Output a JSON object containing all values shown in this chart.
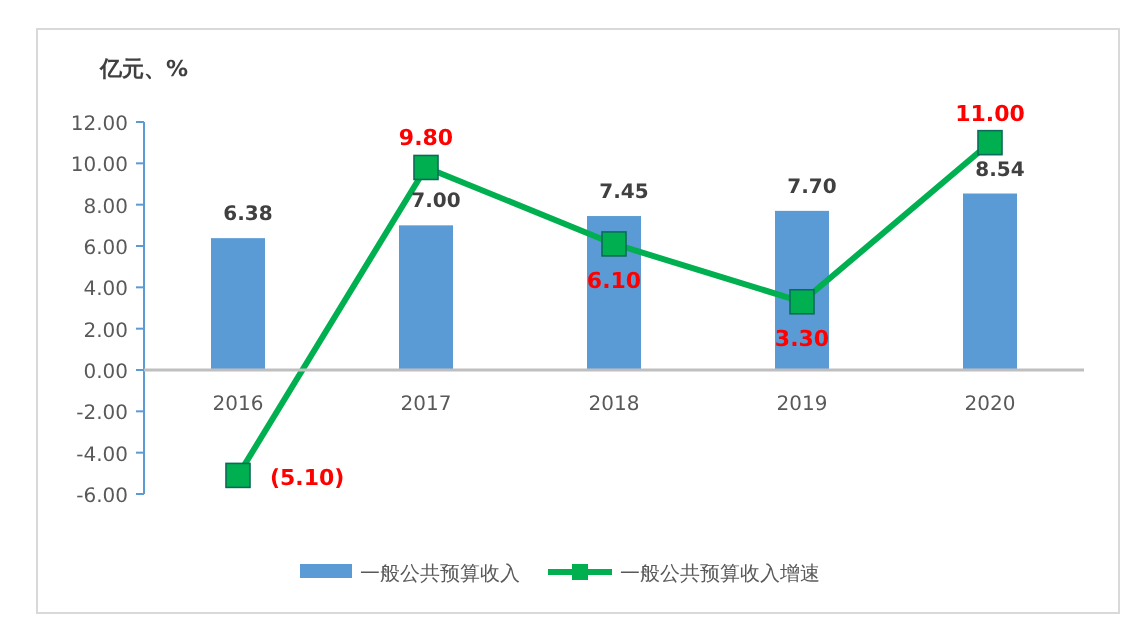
{
  "chart_data": {
    "type": "bar",
    "ylabel": "亿元、%",
    "categories": [
      "2016",
      "2017",
      "2018",
      "2019",
      "2020"
    ],
    "series": [
      {
        "name": "一般公共预算收入",
        "color": "#5b9bd5",
        "values": [
          6.38,
          7.0,
          7.45,
          7.7,
          8.54
        ],
        "value_labels": [
          "6.38",
          "7.00",
          "7.45",
          "7.70",
          "8.54"
        ]
      },
      {
        "name": "一般公共预算收入增速",
        "type": "line",
        "color": "#00b050",
        "marker": "square",
        "values": [
          -5.1,
          9.8,
          6.1,
          3.3,
          11.0
        ],
        "value_labels": [
          "(5.10)",
          "9.80",
          "6.10",
          "3.30",
          "11.00"
        ]
      }
    ],
    "ylim": [
      -6,
      12
    ],
    "yticks": [
      {
        "value": -6,
        "label": "-6.00"
      },
      {
        "value": -4,
        "label": "-4.00"
      },
      {
        "value": -2,
        "label": "-2.00"
      },
      {
        "value": 0,
        "label": "0.00"
      },
      {
        "value": 2,
        "label": "2.00"
      },
      {
        "value": 4,
        "label": "4.00"
      },
      {
        "value": 6,
        "label": "6.00"
      },
      {
        "value": 8,
        "label": "8.00"
      },
      {
        "value": 10,
        "label": "10.00"
      },
      {
        "value": 12,
        "label": "12.00"
      }
    ],
    "grid": false,
    "legend": "bottom"
  }
}
